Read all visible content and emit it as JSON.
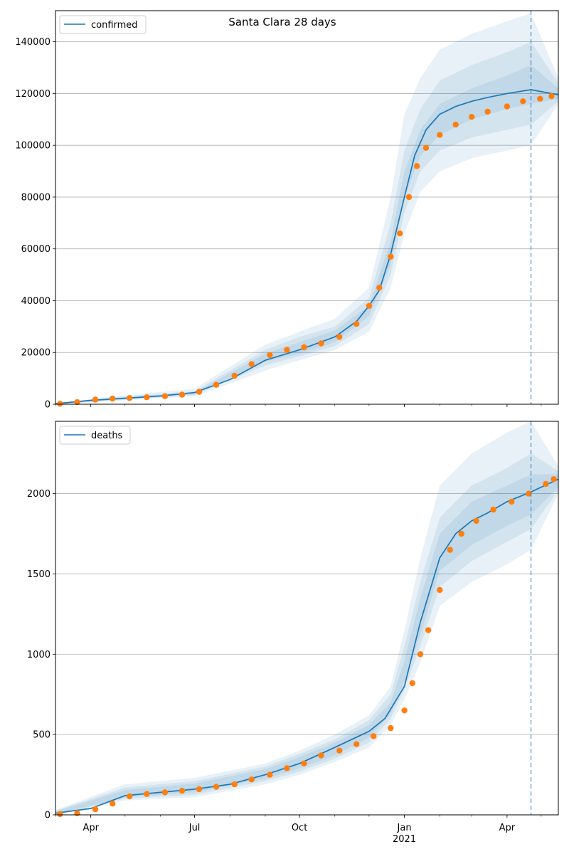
{
  "colors": {
    "model": "#1f77b4",
    "observed": "#ff7f0e",
    "band": "#1f77b4",
    "grid": "#b0b0b0",
    "forecast_line": "#1f77b4"
  },
  "x_axis": {
    "type": "date",
    "range": [
      "2020-03-01",
      "2021-05-16"
    ],
    "tick_labels": [
      {
        "date": "2020-04-01",
        "label": "Apr"
      },
      {
        "date": "2020-07-01",
        "label": "Jul"
      },
      {
        "date": "2020-10-01",
        "label": "Oct"
      },
      {
        "date": "2021-01-01",
        "label": "Jan",
        "sublabel": "2021"
      },
      {
        "date": "2021-04-01",
        "label": "Apr"
      }
    ],
    "forecast_start": "2021-04-22"
  },
  "chart_data": [
    {
      "type": "line",
      "title": "Santa Clara 28 days",
      "legend": {
        "label": "confirmed",
        "placement": "top-left"
      },
      "grid": "horizontal",
      "ylim": [
        0,
        152000
      ],
      "yticks": [
        0,
        20000,
        40000,
        60000,
        80000,
        100000,
        120000,
        140000
      ],
      "model": {
        "x": [
          "2020-03-01",
          "2020-04-01",
          "2020-05-01",
          "2020-06-01",
          "2020-07-01",
          "2020-08-01",
          "2020-09-01",
          "2020-10-01",
          "2020-11-01",
          "2020-11-20",
          "2020-12-01",
          "2020-12-10",
          "2020-12-20",
          "2021-01-01",
          "2021-01-10",
          "2021-01-20",
          "2021-02-01",
          "2021-02-15",
          "2021-03-01",
          "2021-03-15",
          "2021-04-01",
          "2021-04-22",
          "2021-05-16"
        ],
        "y": [
          200,
          1500,
          2300,
          3200,
          4500,
          9500,
          17000,
          21000,
          26000,
          32000,
          38000,
          44000,
          58000,
          80000,
          96000,
          106000,
          112000,
          115000,
          117000,
          118500,
          120000,
          121500,
          119500
        ]
      },
      "bands": {
        "x": [
          "2020-03-01",
          "2020-05-01",
          "2020-07-01",
          "2020-09-01",
          "2020-10-01",
          "2020-11-01",
          "2020-12-01",
          "2020-12-20",
          "2021-01-01",
          "2021-01-15",
          "2021-02-01",
          "2021-03-01",
          "2021-04-01",
          "2021-04-22",
          "2021-05-16"
        ],
        "outer_upper": [
          500,
          3500,
          6000,
          23000,
          28000,
          33000,
          45000,
          80000,
          112000,
          126000,
          137000,
          143000,
          148000,
          151000,
          126000
        ],
        "outer_lower": [
          0,
          1500,
          3000,
          13000,
          17000,
          21000,
          28000,
          45000,
          66000,
          82000,
          90000,
          95000,
          98000,
          100000,
          116000
        ],
        "mid_upper": [
          400,
          3000,
          5000,
          21000,
          26000,
          30000,
          41000,
          70000,
          98000,
          114000,
          125000,
          131000,
          136000,
          140000,
          124000
        ],
        "mid_lower": [
          0,
          1800,
          3500,
          15000,
          18500,
          22500,
          31000,
          50000,
          74000,
          90000,
          98000,
          103000,
          106000,
          108000,
          117000
        ],
        "inner_upper": [
          300,
          2700,
          4500,
          19500,
          24000,
          28500,
          38000,
          63000,
          90000,
          106000,
          116000,
          122000,
          127000,
          131000,
          122000
        ],
        "inner_lower": [
          0,
          2000,
          3800,
          16500,
          19500,
          24000,
          34000,
          54000,
          80000,
          96000,
          104000,
          110000,
          114000,
          116000,
          118000
        ]
      },
      "observed": {
        "x": [
          "2020-03-05",
          "2020-03-20",
          "2020-04-05",
          "2020-04-20",
          "2020-05-05",
          "2020-05-20",
          "2020-06-05",
          "2020-06-20",
          "2020-07-05",
          "2020-07-20",
          "2020-08-05",
          "2020-08-20",
          "2020-09-05",
          "2020-09-20",
          "2020-10-05",
          "2020-10-20",
          "2020-11-05",
          "2020-11-20",
          "2020-12-01",
          "2020-12-10",
          "2020-12-20",
          "2020-12-28",
          "2021-01-05",
          "2021-01-12",
          "2021-01-20",
          "2021-02-01",
          "2021-02-15",
          "2021-03-01",
          "2021-03-15",
          "2021-04-01",
          "2021-04-15",
          "2021-04-30",
          "2021-05-10"
        ],
        "y": [
          200,
          800,
          1800,
          2200,
          2400,
          2700,
          3100,
          3700,
          4800,
          7500,
          11000,
          15500,
          19000,
          21000,
          22000,
          23500,
          26000,
          31000,
          38000,
          45000,
          57000,
          66000,
          80000,
          92000,
          99000,
          104000,
          108000,
          111000,
          113000,
          115000,
          117000,
          118000,
          119000
        ]
      }
    },
    {
      "type": "line",
      "title": "",
      "legend": {
        "label": "deaths",
        "placement": "top-left"
      },
      "grid": "horizontal",
      "ylim": [
        0,
        2450
      ],
      "yticks": [
        0,
        500,
        1000,
        1500,
        2000
      ],
      "model": {
        "x": [
          "2020-03-01",
          "2020-04-01",
          "2020-05-01",
          "2020-06-01",
          "2020-07-01",
          "2020-08-01",
          "2020-09-01",
          "2020-10-01",
          "2020-11-01",
          "2020-12-01",
          "2020-12-15",
          "2021-01-01",
          "2021-01-15",
          "2021-02-01",
          "2021-02-15",
          "2021-03-01",
          "2021-03-15",
          "2021-04-01",
          "2021-04-22",
          "2021-05-16"
        ],
        "y": [
          10,
          40,
          120,
          140,
          160,
          190,
          250,
          320,
          420,
          520,
          600,
          800,
          1200,
          1600,
          1750,
          1830,
          1880,
          1950,
          2010,
          2090
        ]
      },
      "bands": {
        "x": [
          "2020-03-01",
          "2020-05-01",
          "2020-07-01",
          "2020-09-01",
          "2020-10-01",
          "2020-11-01",
          "2020-12-01",
          "2020-12-20",
          "2021-01-01",
          "2021-01-15",
          "2021-02-01",
          "2021-03-01",
          "2021-04-01",
          "2021-04-22",
          "2021-05-16"
        ],
        "outer_upper": [
          30,
          190,
          230,
          320,
          400,
          500,
          620,
          800,
          1150,
          1600,
          2050,
          2250,
          2380,
          2450,
          2170
        ],
        "outer_lower": [
          0,
          90,
          110,
          190,
          250,
          330,
          420,
          560,
          720,
          950,
          1300,
          1450,
          1560,
          1650,
          2000
        ],
        "mid_upper": [
          25,
          170,
          210,
          300,
          380,
          470,
          590,
          750,
          1050,
          1450,
          1850,
          2050,
          2160,
          2250,
          2140
        ],
        "mid_lower": [
          0,
          100,
          125,
          210,
          270,
          350,
          450,
          600,
          780,
          1050,
          1420,
          1580,
          1700,
          1780,
          2020
        ],
        "inner_upper": [
          20,
          155,
          195,
          285,
          360,
          450,
          560,
          700,
          960,
          1350,
          1750,
          1950,
          2050,
          2120,
          2120
        ],
        "inner_lower": [
          0,
          110,
          140,
          225,
          290,
          370,
          480,
          630,
          830,
          1120,
          1520,
          1680,
          1800,
          1870,
          2040
        ]
      },
      "observed": {
        "x": [
          "2020-03-05",
          "2020-03-20",
          "2020-04-05",
          "2020-04-20",
          "2020-05-05",
          "2020-05-20",
          "2020-06-05",
          "2020-06-20",
          "2020-07-05",
          "2020-07-20",
          "2020-08-05",
          "2020-08-20",
          "2020-09-05",
          "2020-09-20",
          "2020-10-05",
          "2020-10-20",
          "2020-11-05",
          "2020-11-20",
          "2020-12-05",
          "2020-12-20",
          "2021-01-01",
          "2021-01-08",
          "2021-01-15",
          "2021-01-22",
          "2021-02-01",
          "2021-02-10",
          "2021-02-20",
          "2021-03-05",
          "2021-03-20",
          "2021-04-05",
          "2021-04-20",
          "2021-05-05",
          "2021-05-12"
        ],
        "y": [
          5,
          10,
          35,
          70,
          115,
          130,
          140,
          150,
          160,
          175,
          190,
          220,
          250,
          290,
          320,
          370,
          400,
          440,
          490,
          540,
          650,
          820,
          1000,
          1150,
          1400,
          1650,
          1750,
          1830,
          1900,
          1950,
          2000,
          2060,
          2090
        ]
      }
    }
  ]
}
